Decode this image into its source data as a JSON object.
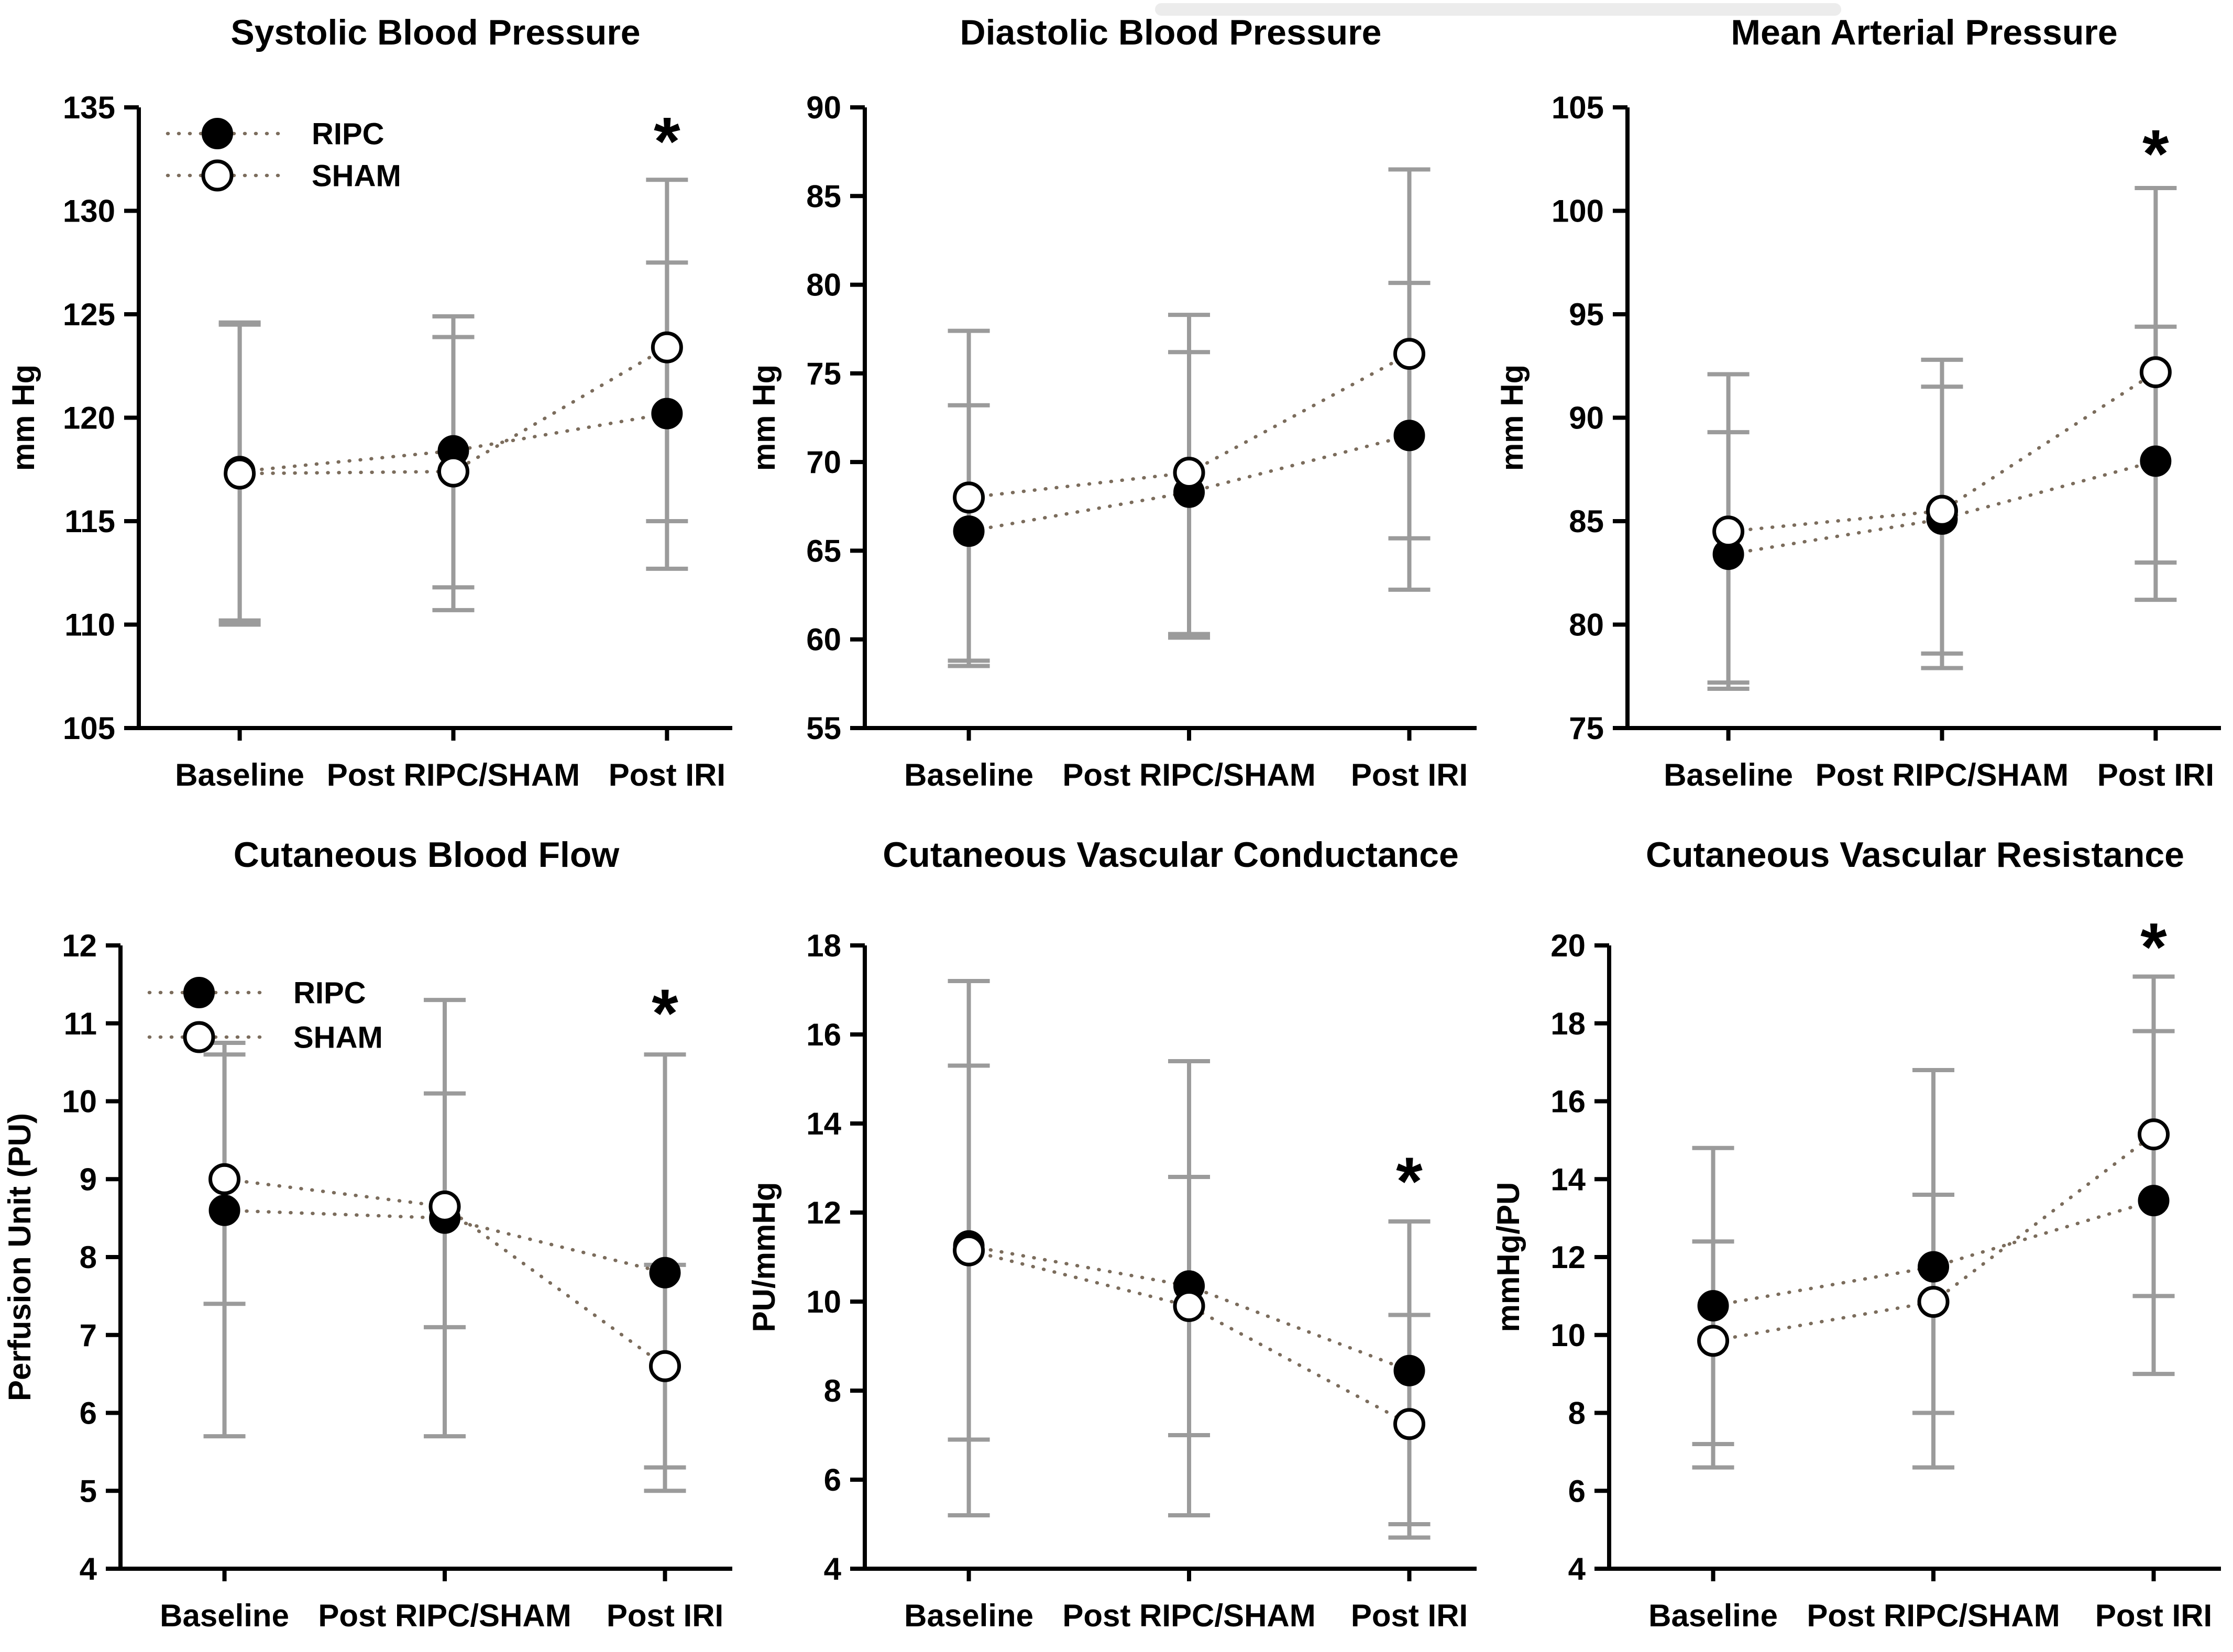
{
  "colors": {
    "axis": "#000000",
    "error_bar": "#9b9b9b",
    "dotted_line": "#7b6c5c",
    "marker_filled": "#000000",
    "marker_open_fill": "#ffffff",
    "marker_stroke": "#000000",
    "text": "#000000"
  },
  "legend_labels": {
    "ripc": "RIPC",
    "sham": "SHAM"
  },
  "significance_symbol": "*",
  "chart_data": [
    {
      "type": "line",
      "title": "Systolic Blood Pressure",
      "ylabel": "mm Hg",
      "ylim": [
        105,
        135
      ],
      "ytick_step": 5,
      "categories": [
        "Baseline",
        "Post RIPC/SHAM",
        "Post IRI"
      ],
      "legend": true,
      "sig": {
        "cat": 2,
        "y": 134.0,
        "symbol": "*"
      },
      "series": [
        {
          "name": "RIPC",
          "marker": "filled",
          "values": [
            117.4,
            118.4,
            120.2
          ],
          "err_low": [
            110.2,
            111.8,
            112.7
          ],
          "err_high": [
            124.6,
            124.9,
            127.5
          ]
        },
        {
          "name": "SHAM",
          "marker": "open",
          "values": [
            117.3,
            117.4,
            123.4
          ],
          "err_low": [
            110.0,
            110.7,
            115.0
          ],
          "err_high": [
            124.5,
            123.9,
            131.5
          ]
        }
      ]
    },
    {
      "type": "line",
      "title": "Diastolic Blood Pressure",
      "ylabel": "mm Hg",
      "ylim": [
        55,
        90
      ],
      "ytick_step": 5,
      "categories": [
        "Baseline",
        "Post RIPC/SHAM",
        "Post IRI"
      ],
      "legend": false,
      "sig": null,
      "series": [
        {
          "name": "RIPC",
          "marker": "filled",
          "values": [
            66.1,
            68.3,
            71.5
          ],
          "err_low": [
            58.8,
            60.1,
            62.8
          ],
          "err_high": [
            73.2,
            76.2,
            80.1
          ]
        },
        {
          "name": "SHAM",
          "marker": "open",
          "values": [
            68.0,
            69.4,
            76.1
          ],
          "err_low": [
            58.5,
            60.3,
            65.7
          ],
          "err_high": [
            77.4,
            78.3,
            86.5
          ]
        }
      ]
    },
    {
      "type": "line",
      "title": "Mean Arterial Pressure",
      "ylabel": "mm Hg",
      "ylim": [
        75,
        105
      ],
      "ytick_step": 5,
      "categories": [
        "Baseline",
        "Post RIPC/SHAM",
        "Post IRI"
      ],
      "legend": false,
      "sig": {
        "cat": 2,
        "y": 103.4,
        "symbol": "*"
      },
      "series": [
        {
          "name": "RIPC",
          "marker": "filled",
          "values": [
            83.4,
            85.1,
            87.9
          ],
          "err_low": [
            77.2,
            78.6,
            81.2
          ],
          "err_high": [
            89.3,
            91.5,
            94.4
          ]
        },
        {
          "name": "SHAM",
          "marker": "open",
          "values": [
            84.5,
            85.5,
            92.2
          ],
          "err_low": [
            76.9,
            77.9,
            83.0
          ],
          "err_high": [
            92.1,
            92.8,
            101.1
          ]
        }
      ]
    },
    {
      "type": "line",
      "title": "Cutaneous Blood Flow",
      "ylabel": "Perfusion Unit (PU)",
      "ylim": [
        4,
        12
      ],
      "ytick_step": 1,
      "categories": [
        "Baseline",
        "Post RIPC/SHAM",
        "Post IRI"
      ],
      "legend": true,
      "sig": {
        "cat": 2,
        "y": 11.3,
        "symbol": "*"
      },
      "series": [
        {
          "name": "RIPC",
          "marker": "filled",
          "values": [
            8.6,
            8.5,
            7.8
          ],
          "err_low": [
            5.7,
            5.7,
            5.0
          ],
          "err_high": [
            10.75,
            11.3,
            10.6
          ]
        },
        {
          "name": "SHAM",
          "marker": "open",
          "values": [
            9.0,
            8.65,
            6.6
          ],
          "err_low": [
            7.4,
            7.1,
            5.3
          ],
          "err_high": [
            10.6,
            10.1,
            7.9
          ]
        }
      ]
    },
    {
      "type": "line",
      "title": "Cutaneous Vascular Conductance",
      "ylabel": "PU/mmHg",
      "ylim": [
        4,
        18
      ],
      "ytick_step": 2,
      "categories": [
        "Baseline",
        "Post RIPC/SHAM",
        "Post IRI"
      ],
      "legend": false,
      "sig": {
        "cat": 2,
        "y": 13.0,
        "symbol": "*"
      },
      "series": [
        {
          "name": "RIPC",
          "marker": "filled",
          "values": [
            11.25,
            10.35,
            8.45
          ],
          "err_low": [
            5.2,
            5.2,
            5.0
          ],
          "err_high": [
            17.2,
            15.4,
            11.8
          ]
        },
        {
          "name": "SHAM",
          "marker": "open",
          "values": [
            11.15,
            9.9,
            7.25
          ],
          "err_low": [
            6.9,
            7.0,
            4.7
          ],
          "err_high": [
            15.3,
            12.8,
            9.7
          ]
        }
      ]
    },
    {
      "type": "line",
      "title": "Cutaneous Vascular Resistance",
      "ylabel": "mmHg/PU",
      "ylim": [
        4,
        20
      ],
      "ytick_step": 2,
      "categories": [
        "Baseline",
        "Post RIPC/SHAM",
        "Post IRI"
      ],
      "legend": false,
      "sig": {
        "cat": 2,
        "y": 20.3,
        "symbol": "*"
      },
      "series": [
        {
          "name": "RIPC",
          "marker": "filled",
          "values": [
            10.75,
            11.75,
            13.45
          ],
          "err_low": [
            6.6,
            6.6,
            9.0
          ],
          "err_high": [
            14.8,
            16.8,
            17.8
          ]
        },
        {
          "name": "SHAM",
          "marker": "open",
          "values": [
            9.85,
            10.85,
            15.15
          ],
          "err_low": [
            7.2,
            8.0,
            11.0
          ],
          "err_high": [
            12.4,
            13.6,
            19.2
          ]
        }
      ]
    }
  ]
}
